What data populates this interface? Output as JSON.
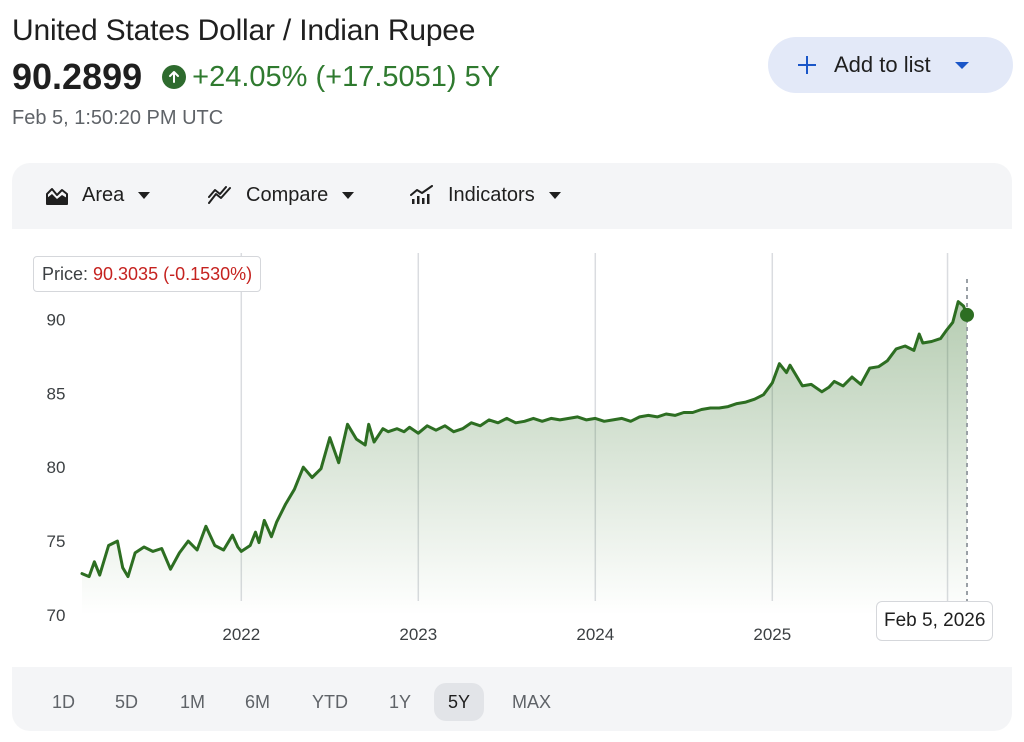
{
  "header": {
    "title": "United States Dollar / Indian Rupee",
    "price": "90.2899",
    "change": "+24.05% (+17.5051) 5Y",
    "timestamp": "Feb 5, 1:50:20 PM UTC",
    "accent_color": "#2f7a2f"
  },
  "add_button": {
    "label": "Add to list",
    "icon": "plus-icon"
  },
  "toolbar": {
    "area_label": "Area",
    "compare_label": "Compare",
    "indicators_label": "Indicators",
    "area_icon": "area-chart-icon",
    "compare_icon": "compare-icon",
    "indicators_icon": "indicators-icon"
  },
  "tooltip": {
    "key": "Price: ",
    "value": "90.3035 (-0.1530%)"
  },
  "crosshair_date": "Feb 5, 2026",
  "ranges": [
    {
      "label": "1D",
      "active": false
    },
    {
      "label": "5D",
      "active": false
    },
    {
      "label": "1M",
      "active": false
    },
    {
      "label": "6M",
      "active": false
    },
    {
      "label": "YTD",
      "active": false
    },
    {
      "label": "1Y",
      "active": false
    },
    {
      "label": "5Y",
      "active": true
    },
    {
      "label": "MAX",
      "active": false
    }
  ],
  "chart_data": {
    "type": "area",
    "line_color": "#2d6e22",
    "fill_color": "#2d6e22",
    "ylim": [
      70,
      93
    ],
    "xlim": [
      2021.1,
      2026.1
    ],
    "y_ticks": [
      70,
      75,
      80,
      85,
      90
    ],
    "x_ticks": [
      {
        "value": 2022,
        "label": "2022"
      },
      {
        "value": 2023,
        "label": "2023"
      },
      {
        "value": 2024,
        "label": "2024"
      },
      {
        "value": 2025,
        "label": "2025"
      }
    ],
    "grid": "vertical",
    "current": {
      "x": 2026.1,
      "y": 90.3
    },
    "series": [
      {
        "x": [
          2021.1,
          2021.14,
          2021.17,
          2021.2,
          2021.25,
          2021.3,
          2021.33,
          2021.36,
          2021.4,
          2021.45,
          2021.5,
          2021.55,
          2021.6,
          2021.65,
          2021.7,
          2021.75,
          2021.8,
          2021.85,
          2021.9,
          2021.95,
          2021.98,
          2022.0,
          2022.05,
          2022.08,
          2022.1,
          2022.13,
          2022.17,
          2022.2,
          2022.25,
          2022.3,
          2022.35,
          2022.4,
          2022.45,
          2022.5,
          2022.55,
          2022.6,
          2022.65,
          2022.7,
          2022.72,
          2022.75,
          2022.8,
          2022.83,
          2022.88,
          2022.92,
          2022.95,
          2023.0,
          2023.05,
          2023.1,
          2023.15,
          2023.2,
          2023.25,
          2023.3,
          2023.35,
          2023.4,
          2023.45,
          2023.5,
          2023.55,
          2023.6,
          2023.65,
          2023.7,
          2023.75,
          2023.8,
          2023.85,
          2023.9,
          2023.95,
          2024.0,
          2024.05,
          2024.1,
          2024.15,
          2024.2,
          2024.25,
          2024.3,
          2024.35,
          2024.4,
          2024.45,
          2024.5,
          2024.55,
          2024.6,
          2024.65,
          2024.7,
          2024.75,
          2024.8,
          2024.85,
          2024.9,
          2024.95,
          2025.0,
          2025.04,
          2025.08,
          2025.1,
          2025.13,
          2025.17,
          2025.22,
          2025.28,
          2025.32,
          2025.35,
          2025.4,
          2025.45,
          2025.5,
          2025.55,
          2025.6,
          2025.65,
          2025.7,
          2025.75,
          2025.8,
          2025.83,
          2025.85,
          2025.9,
          2025.95,
          2025.98,
          2026.02,
          2026.05,
          2026.08,
          2026.1
        ],
        "y": [
          72.8,
          72.6,
          73.6,
          72.7,
          74.7,
          75.0,
          73.2,
          72.6,
          74.2,
          74.6,
          74.3,
          74.5,
          73.1,
          74.2,
          75.0,
          74.4,
          76.0,
          74.7,
          74.4,
          75.4,
          74.6,
          74.3,
          74.7,
          75.6,
          74.9,
          76.4,
          75.3,
          76.3,
          77.5,
          78.5,
          80.0,
          79.3,
          79.9,
          82.0,
          80.3,
          82.9,
          81.9,
          81.5,
          82.9,
          81.7,
          82.6,
          82.4,
          82.6,
          82.4,
          82.7,
          82.3,
          82.8,
          82.5,
          82.8,
          82.4,
          82.6,
          83.0,
          82.8,
          83.2,
          83.0,
          83.3,
          83.0,
          83.1,
          83.3,
          83.1,
          83.3,
          83.2,
          83.3,
          83.4,
          83.2,
          83.3,
          83.1,
          83.2,
          83.3,
          83.1,
          83.4,
          83.5,
          83.4,
          83.6,
          83.5,
          83.7,
          83.7,
          83.9,
          84.0,
          84.0,
          84.1,
          84.3,
          84.4,
          84.6,
          84.9,
          85.7,
          87.0,
          86.4,
          86.9,
          86.3,
          85.5,
          85.6,
          85.1,
          85.4,
          85.8,
          85.5,
          86.1,
          85.6,
          86.7,
          86.8,
          87.2,
          88.0,
          88.2,
          87.9,
          89.0,
          88.4,
          88.5,
          88.7,
          89.2,
          89.8,
          91.2,
          90.9,
          90.3
        ]
      }
    ]
  }
}
